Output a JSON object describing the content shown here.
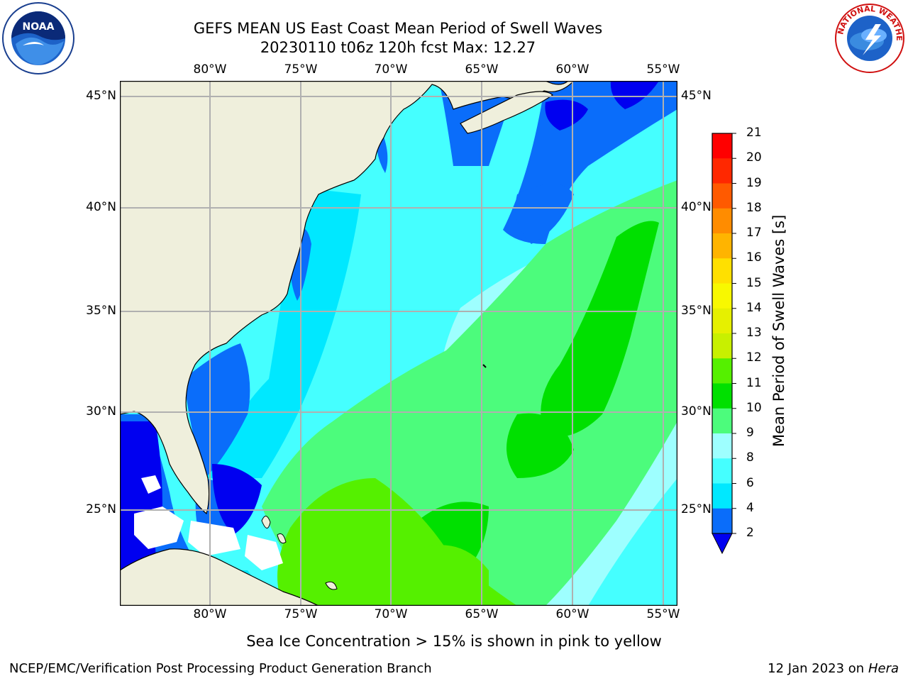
{
  "title": "GEFS MEAN US East Coast Mean Period of Swell Waves",
  "subtitle": "20230110 t06z 120h fcst   Max: 12.27",
  "logos": {
    "left": "NOAA",
    "right": "NATIONAL WEATHER SERVICE"
  },
  "axes": {
    "lon_labels": [
      "80°W",
      "75°W",
      "70°W",
      "65°W",
      "60°W",
      "55°W"
    ],
    "lat_labels": [
      "45°N",
      "40°N",
      "35°N",
      "30°N",
      "25°N"
    ]
  },
  "colorbar": {
    "label": "Mean Period of Swell Waves [s]",
    "ticks": [
      "21",
      "20",
      "19",
      "18",
      "17",
      "16",
      "15",
      "14",
      "13",
      "12",
      "11",
      "10",
      "9",
      "8",
      "6",
      "4",
      "2"
    ],
    "colors": {
      "c2_4": "#0a6dfa",
      "c4_6": "#00e8ff",
      "c6_8": "#45ffff",
      "c8_9": "#9effff",
      "c9_10": "#4cfc7c",
      "c10_11": "#00e000",
      "c11_12": "#55f000",
      "c12_13": "#c8f000",
      "c13_14": "#e6f000",
      "c14_15": "#f8f800",
      "c15_16": "#ffe000",
      "c16_17": "#ffb400",
      "c17_18": "#ff8c00",
      "c18_19": "#ff5a00",
      "c19_20": "#ff2800",
      "c20_21": "#ff0000",
      "under": "#0000f0"
    }
  },
  "colors": {
    "land": "#efefdc",
    "grid": "#b0b0b0",
    "ocean_base": "#45ffff"
  },
  "note": "Sea Ice Concentration > 15% is shown in pink to yellow",
  "footer_left": "NCEP/EMC/Verification Post Processing Product Generation Branch",
  "footer_right_date": "12 Jan 2023 on ",
  "footer_right_host": "Hera"
}
